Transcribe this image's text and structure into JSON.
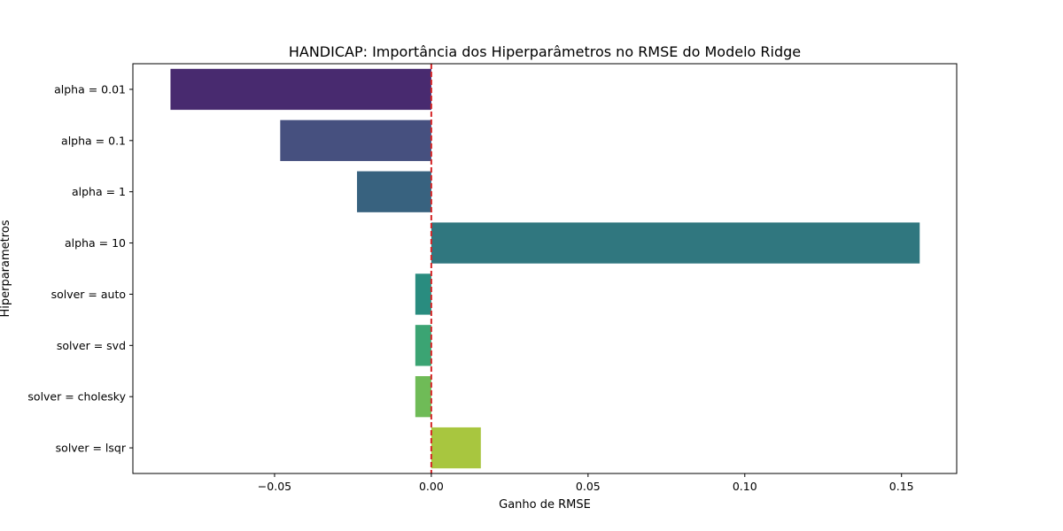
{
  "chart_data": {
    "type": "bar",
    "orientation": "horizontal",
    "title": "HANDICAP: Importância dos Hiperparâmetros no RMSE do Modelo Ridge",
    "xlabel": "Ganho de RMSE",
    "ylabel": "Hiperparametros",
    "categories": [
      "alpha = 0.01",
      "alpha = 0.1",
      "alpha = 1",
      "alpha = 10",
      "solver = auto",
      "solver = svd",
      "solver = cholesky",
      "solver = lsqr"
    ],
    "values": [
      -0.0832,
      -0.0482,
      -0.0237,
      0.1558,
      -0.0051,
      -0.0051,
      -0.0051,
      0.0158
    ],
    "colors": [
      "#482a6f",
      "#46507f",
      "#38627f",
      "#30777f",
      "#298c7f",
      "#3ba473",
      "#6fbb57",
      "#a8c63f"
    ],
    "xlim": [
      -0.0952,
      0.1676
    ],
    "xticks": [
      -0.05,
      0.0,
      0.05,
      0.1,
      0.15
    ],
    "xtick_labels": [
      "−0.05",
      "0.00",
      "0.05",
      "0.10",
      "0.15"
    ],
    "reference_line": {
      "x": 0,
      "color": "#d62728",
      "style": "dashed"
    },
    "grid": false,
    "legend": "none"
  }
}
